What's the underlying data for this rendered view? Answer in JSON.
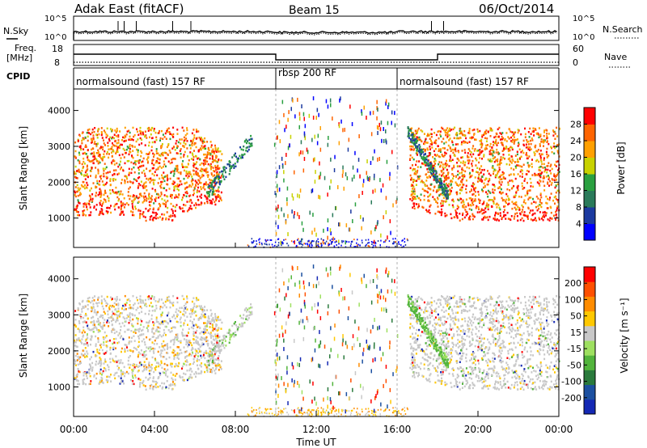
{
  "header": {
    "title": "Adak East (fitACF)",
    "beam": "Beam 15",
    "date": "06/Oct/2014"
  },
  "top_panel": {
    "left_label": "N.Sky",
    "right_label": "N.Search",
    "left_ticks": [
      "10^5",
      "10^0"
    ],
    "right_ticks": [
      "10^5",
      "10^0"
    ]
  },
  "freq_panel": {
    "left_label_1": "Freq.",
    "left_label_2": "[MHz]",
    "right_label": "Nave",
    "left_ticks": [
      "18",
      "8"
    ],
    "right_ticks": [
      "60",
      "0"
    ]
  },
  "cpid_panel": {
    "label": "CPID",
    "segments": [
      {
        "label": "normalsound (fast) 157 RF",
        "start": 0,
        "end": 10
      },
      {
        "label": "rbsp 200 RF",
        "start": 10,
        "end": 16
      },
      {
        "label": "normalsound (fast) 157 RF",
        "start": 16,
        "end": 24
      }
    ]
  },
  "chart_data": [
    {
      "type": "heatmap",
      "panel": "power",
      "ylabel": "Slant Range [km]",
      "yticks": [
        "4000",
        "3000",
        "2000",
        "1000"
      ],
      "ylim": [
        180,
        4600
      ],
      "colorbar_label": "Power [dB]",
      "colorbar_ticks": [
        "28",
        "24",
        "20",
        "16",
        "12",
        "8",
        "4"
      ],
      "colors": [
        "#0000ff",
        "#1c3aa0",
        "#2a7a5a",
        "#2aa040",
        "#c8d200",
        "#ffa000",
        "#ff6400",
        "#ff0000"
      ]
    },
    {
      "type": "heatmap",
      "panel": "velocity",
      "ylabel": "Slant Range [km]",
      "yticks": [
        "4000",
        "3000",
        "2000",
        "1000"
      ],
      "ylim": [
        180,
        4600
      ],
      "colorbar_label": "Velocity [m s⁻¹]",
      "colorbar_ticks": [
        "200",
        "100",
        "50",
        "15",
        "-15",
        "-50",
        "-100",
        "-200"
      ],
      "colors": [
        "#1428b4",
        "#1c50a0",
        "#2a7a3c",
        "#52b43c",
        "#9ee060",
        "#c8c8c8",
        "#ffc800",
        "#ff8c00",
        "#ff5000",
        "#ff0000"
      ],
      "xlabel": "Time UT",
      "xticks": [
        "00:00",
        "04:00",
        "08:00",
        "12:00",
        "16:00",
        "20:00",
        "00:00"
      ],
      "xlim": [
        0,
        24
      ]
    }
  ]
}
